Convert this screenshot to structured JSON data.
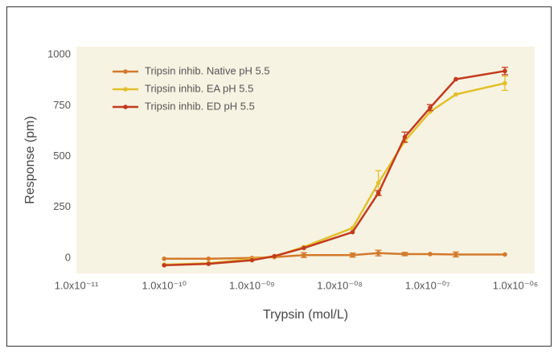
{
  "chart_data": {
    "type": "line",
    "x_label": "Trypsin (mol/L)",
    "y_label": "Response (pm)",
    "x": [
      1e-10,
      3.2e-10,
      1e-09,
      1.8e-09,
      3.9e-09,
      1.4e-08,
      2.75e-08,
      5.5e-08,
      1.07e-07,
      2.1e-07,
      7.6e-07
    ],
    "series": [
      {
        "name": "Tripsin inhib. Native pH 5.5",
        "color": "#d37a2c",
        "values": [
          -3,
          -3,
          1,
          5,
          15,
          15,
          25,
          20,
          20,
          18,
          18
        ],
        "errors": [
          null,
          null,
          null,
          null,
          12,
          10,
          14,
          8,
          null,
          12,
          null
        ]
      },
      {
        "name": "Tripsin inhib. EA pH 5.5",
        "color": "#e2c02c",
        "values": [
          -32,
          -25,
          -5,
          8,
          55,
          148,
          370,
          575,
          720,
          805,
          860
        ],
        "errors": [
          null,
          null,
          null,
          null,
          null,
          null,
          60,
          null,
          null,
          null,
          35
        ]
      },
      {
        "name": "Tripsin inhib. ED pH 5.5",
        "color": "#c23b1e",
        "values": [
          -35,
          -28,
          -10,
          10,
          50,
          128,
          320,
          595,
          740,
          880,
          920
        ],
        "errors": [
          null,
          null,
          null,
          null,
          null,
          null,
          12,
          25,
          15,
          null,
          18
        ]
      }
    ],
    "xscale": "log",
    "xlim": [
      1e-11,
      1.66e-06
    ],
    "xticks": [
      {
        "value": 1e-11,
        "label": "1.0x10⁻¹¹"
      },
      {
        "value": 1e-10,
        "label": "1.0x10⁻¹⁰"
      },
      {
        "value": 1e-09,
        "label": "1.0x10⁻⁰⁹"
      },
      {
        "value": 1e-08,
        "label": "1.0x10⁻⁰⁸"
      },
      {
        "value": 1e-07,
        "label": "1.0x10⁻⁰⁷"
      },
      {
        "value": 1e-06,
        "label": "1.0x10⁻⁰⁶"
      }
    ],
    "ylim": [
      -75,
      1040
    ],
    "yticks": [
      0,
      250,
      500,
      750,
      1000
    ],
    "grid": false,
    "legend": "upper left"
  }
}
